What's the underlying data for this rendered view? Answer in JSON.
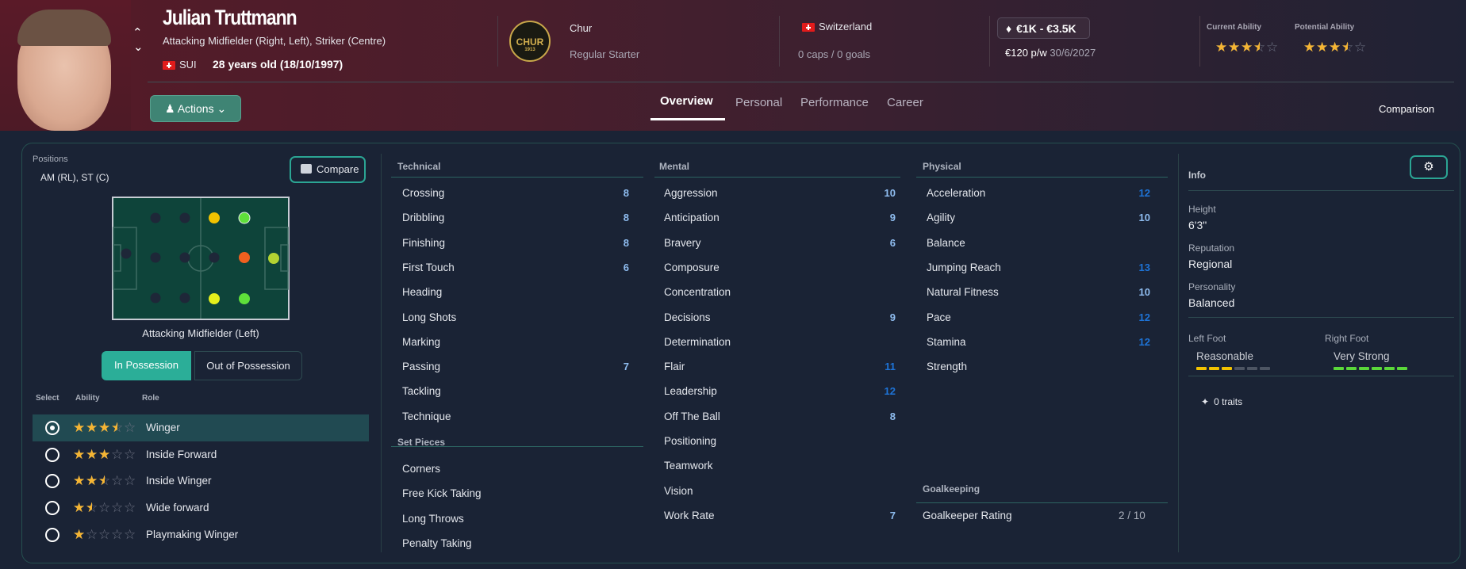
{
  "player": {
    "name": "Julian Truttmann",
    "positions_long": "Attacking Midfielder (Right, Left), Striker (Centre)",
    "nation_code": "SUI",
    "age": "28 years old (18/10/1997)"
  },
  "club": {
    "name": "Chur",
    "logo_text": "CHUR",
    "logo_year": "1913",
    "status": "Regular Starter"
  },
  "international": {
    "country": "Switzerland",
    "caps": "0 caps / 0 goals"
  },
  "contract": {
    "value": "€1K - €3.5K",
    "wage": "€120 p/w",
    "expiry": "30/6/2027"
  },
  "ability": {
    "current_label": "Current Ability",
    "current_stars": 3.5,
    "potential_label": "Potential Ability",
    "potential_stars": 3.5
  },
  "actions_label": "Actions",
  "tabs": [
    {
      "label": "Overview",
      "active": true
    },
    {
      "label": "Personal"
    },
    {
      "label": "Performance"
    },
    {
      "label": "Career"
    }
  ],
  "comparison_label": "Comparison",
  "positions_panel": {
    "title": "Positions",
    "value": "AM (RL), ST (C)",
    "compare_label": "Compare",
    "selected_position": "Attacking Midfielder (Left)",
    "pitch": [
      {
        "pos": "GK",
        "color": "#1e2738"
      },
      {
        "pos": "DL",
        "color": "#1e2738"
      },
      {
        "pos": "DC",
        "color": "#1e2738"
      },
      {
        "pos": "DR",
        "color": "#1e2738"
      },
      {
        "pos": "DML",
        "color": "#1e2738"
      },
      {
        "pos": "DMC",
        "color": "#1e2738"
      },
      {
        "pos": "DMR",
        "color": "#1e2738"
      },
      {
        "pos": "ML",
        "color": "#f2c200"
      },
      {
        "pos": "MC",
        "color": "#1e2738"
      },
      {
        "pos": "MR",
        "color": "#e6ef1c"
      },
      {
        "pos": "AML",
        "color": "#5fe03a",
        "selected": true
      },
      {
        "pos": "AMC",
        "color": "#f0601f"
      },
      {
        "pos": "AMR",
        "color": "#5ee03a"
      },
      {
        "pos": "ST",
        "color": "#b3d332"
      }
    ],
    "toggle": [
      "In Possession",
      "Out of Possession"
    ],
    "columns": [
      "Select",
      "Ability",
      "Role"
    ],
    "roles": [
      {
        "name": "Winger",
        "stars": 3.5,
        "selected": true
      },
      {
        "name": "Inside Forward",
        "stars": 3
      },
      {
        "name": "Inside Winger",
        "stars": 2.5
      },
      {
        "name": "Wide forward",
        "stars": 1.5
      },
      {
        "name": "Playmaking Winger",
        "stars": 1
      }
    ]
  },
  "technical": {
    "title": "Technical",
    "items": [
      {
        "name": "Crossing",
        "value": "8"
      },
      {
        "name": "Dribbling",
        "value": "8"
      },
      {
        "name": "Finishing",
        "value": "8"
      },
      {
        "name": "First Touch",
        "value": "6"
      },
      {
        "name": "Heading",
        "value": ""
      },
      {
        "name": "Long Shots",
        "value": ""
      },
      {
        "name": "Marking",
        "value": ""
      },
      {
        "name": "Passing",
        "value": "7"
      },
      {
        "name": "Tackling",
        "value": ""
      },
      {
        "name": "Technique",
        "value": ""
      }
    ]
  },
  "set_pieces": {
    "title": "Set Pieces",
    "items": [
      {
        "name": "Corners",
        "value": ""
      },
      {
        "name": "Free Kick Taking",
        "value": ""
      },
      {
        "name": "Long Throws",
        "value": ""
      },
      {
        "name": "Penalty Taking",
        "value": ""
      }
    ]
  },
  "mental": {
    "title": "Mental",
    "items": [
      {
        "name": "Aggression",
        "value": "10"
      },
      {
        "name": "Anticipation",
        "value": "9"
      },
      {
        "name": "Bravery",
        "value": "6"
      },
      {
        "name": "Composure",
        "value": ""
      },
      {
        "name": "Concentration",
        "value": ""
      },
      {
        "name": "Decisions",
        "value": "9"
      },
      {
        "name": "Determination",
        "value": ""
      },
      {
        "name": "Flair",
        "value": "11"
      },
      {
        "name": "Leadership",
        "value": "12"
      },
      {
        "name": "Off The Ball",
        "value": "8"
      },
      {
        "name": "Positioning",
        "value": ""
      },
      {
        "name": "Teamwork",
        "value": ""
      },
      {
        "name": "Vision",
        "value": ""
      },
      {
        "name": "Work Rate",
        "value": "7"
      }
    ]
  },
  "physical": {
    "title": "Physical",
    "items": [
      {
        "name": "Acceleration",
        "value": "12"
      },
      {
        "name": "Agility",
        "value": "10"
      },
      {
        "name": "Balance",
        "value": ""
      },
      {
        "name": "Jumping Reach",
        "value": "13"
      },
      {
        "name": "Natural Fitness",
        "value": "10"
      },
      {
        "name": "Pace",
        "value": "12"
      },
      {
        "name": "Stamina",
        "value": "12"
      },
      {
        "name": "Strength",
        "value": ""
      }
    ]
  },
  "goalkeeping": {
    "title": "Goalkeeping",
    "rating_label": "Goalkeeper Rating",
    "rating_value": "2 / 10"
  },
  "info": {
    "title": "Info",
    "height_label": "Height",
    "height": "6'3\"",
    "reputation_label": "Reputation",
    "reputation": "Regional",
    "personality_label": "Personality",
    "personality": "Balanced",
    "left_foot_label": "Left Foot",
    "left_foot": "Reasonable",
    "left_foot_level": 3,
    "right_foot_label": "Right Foot",
    "right_foot": "Very Strong",
    "right_foot_level": 6,
    "foot_level_max": 6,
    "traits": "0 traits"
  },
  "colors": {
    "accent": "#2bae98",
    "value_mid": "#8fbdf0",
    "value_high": "#1e74d8",
    "left_foot_bar": "#f2c200",
    "right_foot_bar": "#5ad83a",
    "bar_empty": "#4d5563"
  }
}
